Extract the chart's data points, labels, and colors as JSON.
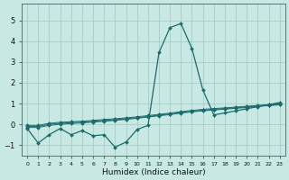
{
  "xlabel": "Humidex (Indice chaleur)",
  "xlim": [
    -0.5,
    23.5
  ],
  "ylim": [
    -1.5,
    5.8
  ],
  "background_color": "#c8e8e4",
  "grid_color": "#a0c8c4",
  "line_color": "#1a6b6b",
  "x": [
    0,
    1,
    2,
    3,
    4,
    5,
    6,
    7,
    8,
    9,
    10,
    11,
    12,
    13,
    14,
    15,
    16,
    17,
    18,
    19,
    20,
    21,
    22,
    23
  ],
  "line_main": [
    -0.2,
    -0.9,
    -0.5,
    -0.2,
    -0.5,
    -0.3,
    -0.55,
    -0.5,
    -1.1,
    -0.85,
    -0.25,
    -0.05,
    3.45,
    4.65,
    4.85,
    3.65,
    1.65,
    0.45,
    0.55,
    0.65,
    0.75,
    0.85,
    0.95,
    1.05
  ],
  "line_flat1": [
    -0.1,
    -0.1,
    0.0,
    0.05,
    0.08,
    0.1,
    0.15,
    0.18,
    0.22,
    0.27,
    0.32,
    0.38,
    0.44,
    0.5,
    0.57,
    0.63,
    0.68,
    0.72,
    0.76,
    0.8,
    0.84,
    0.88,
    0.92,
    0.96
  ],
  "line_flat2": [
    -0.15,
    -0.15,
    -0.05,
    0.0,
    0.04,
    0.07,
    0.11,
    0.15,
    0.19,
    0.24,
    0.29,
    0.35,
    0.41,
    0.47,
    0.54,
    0.6,
    0.65,
    0.69,
    0.73,
    0.77,
    0.81,
    0.86,
    0.9,
    0.94
  ],
  "line_flat3": [
    -0.05,
    -0.05,
    0.05,
    0.1,
    0.13,
    0.15,
    0.19,
    0.23,
    0.27,
    0.31,
    0.36,
    0.42,
    0.48,
    0.54,
    0.61,
    0.67,
    0.72,
    0.76,
    0.79,
    0.83,
    0.87,
    0.91,
    0.95,
    0.99
  ],
  "xticks": [
    0,
    1,
    2,
    3,
    4,
    5,
    6,
    7,
    8,
    9,
    10,
    11,
    12,
    13,
    14,
    15,
    16,
    17,
    18,
    19,
    20,
    21,
    22,
    23
  ],
  "yticks": [
    -1,
    0,
    1,
    2,
    3,
    4,
    5
  ]
}
